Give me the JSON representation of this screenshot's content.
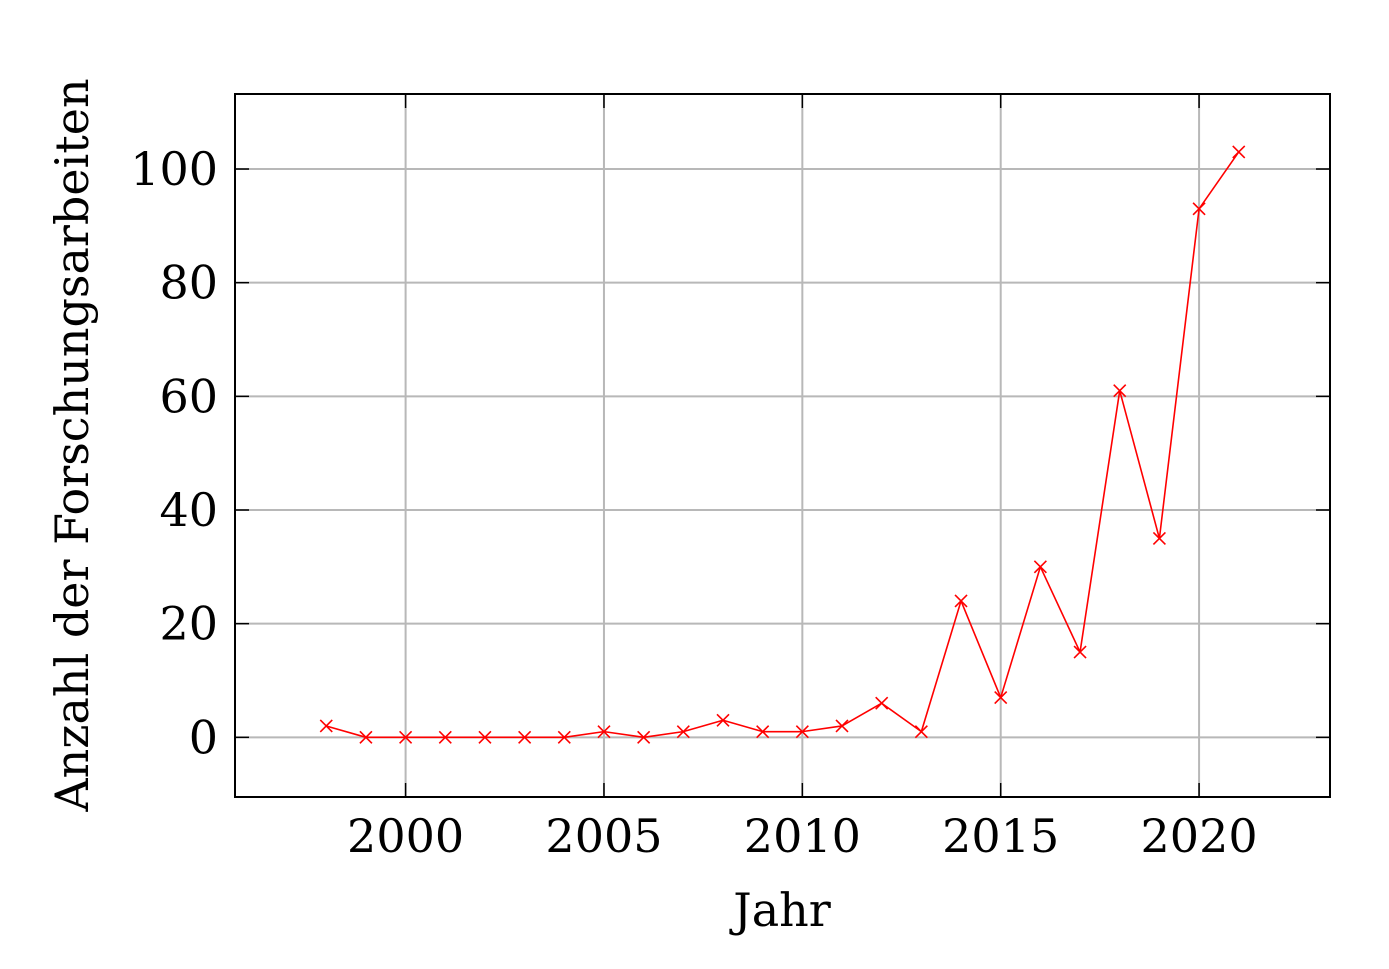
{
  "chart_data": {
    "type": "line",
    "title": "",
    "xlabel": "Jahr",
    "ylabel": "Anzahl der Forschungsarbeiten",
    "xlim": [
      1995.7,
      2023.3
    ],
    "ylim": [
      -10.5,
      113.2
    ],
    "xticks": [
      2000,
      2005,
      2010,
      2015,
      2020
    ],
    "yticks": [
      0,
      20,
      40,
      60,
      80,
      100
    ],
    "grid": true,
    "legend": "none",
    "series": [
      {
        "color": "#ff0000",
        "marker": "x",
        "x": [
          1998,
          1999,
          2000,
          2001,
          2002,
          2003,
          2004,
          2005,
          2006,
          2007,
          2008,
          2009,
          2010,
          2011,
          2012,
          2013,
          2014,
          2015,
          2016,
          2017,
          2018,
          2019,
          2020,
          2021
        ],
        "y": [
          2,
          0,
          0,
          0,
          0,
          0,
          0,
          1,
          0,
          1,
          3,
          1,
          1,
          2,
          6,
          1,
          24,
          7,
          30,
          15,
          61,
          35,
          93,
          103
        ]
      }
    ]
  }
}
